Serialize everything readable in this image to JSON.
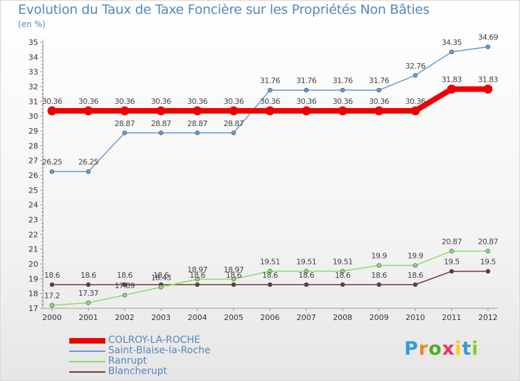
{
  "title": "Evolution du Taux de Taxe Foncière sur les Propriétés Non Bâties",
  "unit_label": "(en %)",
  "chart_data": {
    "type": "line",
    "title": "Evolution du Taux de Taxe Foncière sur les Propriétés Non Bâties",
    "ylabel": "(en %)",
    "xlabel": "",
    "categories": [
      "2000",
      "2001",
      "2002",
      "2003",
      "2004",
      "2005",
      "2006",
      "2007",
      "2008",
      "2009",
      "2010",
      "2011",
      "2012"
    ],
    "ylim": [
      17,
      35
    ],
    "yticks": [
      17,
      18,
      19,
      20,
      21,
      22,
      23,
      24,
      25,
      26,
      27,
      28,
      29,
      30,
      31,
      32,
      33,
      34,
      35
    ],
    "grid": false,
    "series": [
      {
        "name": "COLROY-LA-ROCHE",
        "color": "#ee0000",
        "values": [
          30.36,
          30.36,
          30.36,
          30.36,
          30.36,
          30.36,
          30.36,
          30.36,
          30.36,
          30.36,
          30.36,
          31.83,
          31.83
        ],
        "labels": [
          "30.36",
          "30.36",
          "30.36",
          "30.36",
          "30.36",
          "30.36",
          "30.36",
          "30.36",
          "30.36",
          "30.36",
          "30.36",
          "31.83",
          "31.83"
        ]
      },
      {
        "name": "Saint-Blaise-la-Roche",
        "color": "#6699cc",
        "values": [
          26.25,
          26.25,
          28.87,
          28.87,
          28.87,
          28.87,
          31.76,
          31.76,
          31.76,
          31.76,
          32.76,
          34.35,
          34.69
        ],
        "labels": [
          "26.25",
          "26.25",
          "28.87",
          "28.87",
          "28.87",
          "28.87",
          "31.76",
          "31.76",
          "31.76",
          "31.76",
          "32.76",
          "34.35",
          "34.69"
        ]
      },
      {
        "name": "Ranrupt",
        "color": "#88dd66",
        "values": [
          17.2,
          17.37,
          17.89,
          18.43,
          18.97,
          18.97,
          19.51,
          19.51,
          19.51,
          19.9,
          19.9,
          20.87,
          20.87
        ],
        "labels": [
          "17.2",
          "17.37",
          "17.89",
          "18.43",
          "18.97",
          "18.97",
          "19.51",
          "19.51",
          "19.51",
          "19.9",
          "19.9",
          "20.87",
          "20.87"
        ]
      },
      {
        "name": "Blancherupt",
        "color": "#773333",
        "values": [
          18.6,
          18.6,
          18.6,
          18.6,
          18.6,
          18.6,
          18.6,
          18.6,
          18.6,
          18.6,
          18.6,
          19.5,
          19.5
        ],
        "labels": [
          "18.6",
          "18.6",
          "18.6",
          "18.6",
          "18.6",
          "18.6",
          "18.6",
          "18.6",
          "18.6",
          "18.6",
          "18.6",
          "19.5",
          "19.5"
        ]
      }
    ]
  },
  "legend": [
    {
      "label": "COLROY-LA-ROCHE",
      "color": "#ee0000"
    },
    {
      "label": "Saint-Blaise-la-Roche",
      "color": "#6699cc"
    },
    {
      "label": "Ranrupt",
      "color": "#88dd66"
    },
    {
      "label": "Blancherupt",
      "color": "#773333"
    }
  ],
  "logo": {
    "letters": [
      "P",
      "r",
      "o",
      "x",
      "i",
      "t",
      "i"
    ],
    "colors": [
      "#3399dd",
      "#ee8822",
      "#55aa22",
      "#ee3366",
      "#ffcc00",
      "#3399dd",
      "#88cc22"
    ]
  }
}
